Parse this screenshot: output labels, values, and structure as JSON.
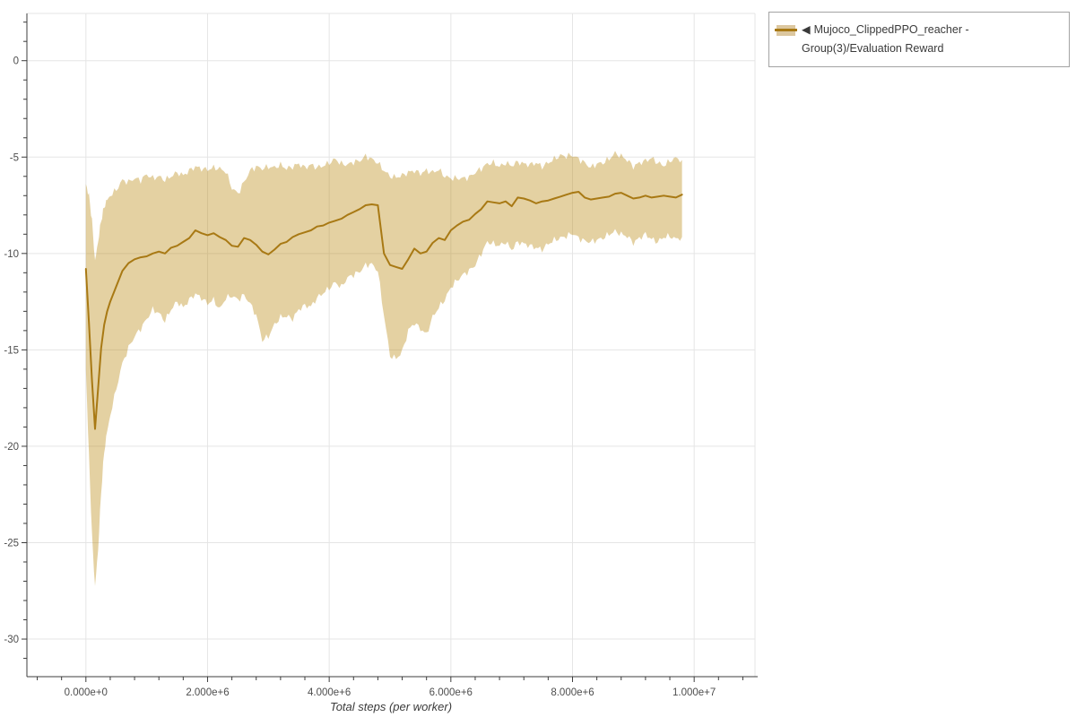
{
  "legend": {
    "marker": "◀",
    "label": "Mujoco_ClippedPPO_reacher - Group(3)/Evaluation Reward"
  },
  "styles": {
    "line_color": "#a87914",
    "band_fill": "#b8860b",
    "band_opacity": 0.38,
    "band_solid_swatch": "#dcc79f",
    "grid_color": "#e5e5e5",
    "axis_line_color": "#3c3c3c",
    "tick_label_color": "#4d4d4d",
    "axis_title_color": "#3b3b3b",
    "legend_text_color": "#3a3a3a",
    "legend_border_color": "#a3a3a3",
    "background": "#ffffff"
  },
  "chart_data": {
    "type": "line",
    "title": "",
    "xlabel": "Total steps (per worker)",
    "ylabel": "",
    "legend_position": "top-right-outside",
    "grid": true,
    "x_range": [
      -970000,
      11000000
    ],
    "y_range": [
      -31.95,
      2.45
    ],
    "x_minor_step": 400000,
    "y_minor_step": 1,
    "x_ticks": [
      {
        "value": 0,
        "label": "0.000e+0"
      },
      {
        "value": 2000000,
        "label": "2.000e+6"
      },
      {
        "value": 4000000,
        "label": "4.000e+6"
      },
      {
        "value": 6000000,
        "label": "6.000e+6"
      },
      {
        "value": 8000000,
        "label": "8.000e+6"
      },
      {
        "value": 10000000,
        "label": "1.000e+7"
      }
    ],
    "y_ticks": [
      {
        "value": 0,
        "label": "0"
      },
      {
        "value": -5,
        "label": "-5"
      },
      {
        "value": -10,
        "label": "-10"
      },
      {
        "value": -15,
        "label": "-15"
      },
      {
        "value": -20,
        "label": "-20"
      },
      {
        "value": -25,
        "label": "-25"
      },
      {
        "value": -30,
        "label": "-30"
      }
    ],
    "series": [
      {
        "name": "Mujoco_ClippedPPO_reacher - Group(3)/Evaluation Reward",
        "x_unit_multiplier": 1000000,
        "columns": [
          "x_steps_e6",
          "mean_reward",
          "band_upper",
          "band_lower"
        ],
        "points": [
          [
            0.0,
            -10.8,
            -6.4,
            -16.0
          ],
          [
            0.05,
            -13.6,
            -7.0,
            -20.5
          ],
          [
            0.1,
            -16.6,
            -8.3,
            -24.6
          ],
          [
            0.15,
            -19.1,
            -10.4,
            -27.3
          ],
          [
            0.2,
            -17.0,
            -9.4,
            -25.4
          ],
          [
            0.25,
            -14.9,
            -8.3,
            -22.4
          ],
          [
            0.3,
            -13.7,
            -7.6,
            -20.3
          ],
          [
            0.35,
            -13.0,
            -7.2,
            -19.2
          ],
          [
            0.4,
            -12.5,
            -7.0,
            -18.4
          ],
          [
            0.5,
            -11.7,
            -6.7,
            -17.0
          ],
          [
            0.6,
            -10.9,
            -6.2,
            -15.7
          ],
          [
            0.7,
            -10.5,
            -6.3,
            -14.9
          ],
          [
            0.8,
            -10.3,
            -6.1,
            -14.3
          ],
          [
            0.9,
            -10.2,
            -6.2,
            -13.9
          ],
          [
            1.0,
            -10.15,
            -5.9,
            -13.4
          ],
          [
            1.1,
            -10.0,
            -6.1,
            -12.9
          ],
          [
            1.2,
            -9.9,
            -6.0,
            -13.1
          ],
          [
            1.3,
            -10.0,
            -6.2,
            -13.5
          ],
          [
            1.4,
            -9.7,
            -6.0,
            -12.9
          ],
          [
            1.5,
            -9.6,
            -5.8,
            -12.5
          ],
          [
            1.6,
            -9.4,
            -5.95,
            -12.8
          ],
          [
            1.7,
            -9.2,
            -5.7,
            -12.4
          ],
          [
            1.8,
            -8.8,
            -5.5,
            -12.1
          ],
          [
            1.9,
            -8.95,
            -5.6,
            -12.3
          ],
          [
            2.0,
            -9.05,
            -5.65,
            -12.6
          ],
          [
            2.1,
            -8.95,
            -5.55,
            -12.4
          ],
          [
            2.2,
            -9.15,
            -5.6,
            -12.9
          ],
          [
            2.3,
            -9.3,
            -5.75,
            -12.3
          ],
          [
            2.4,
            -9.6,
            -6.6,
            -12.2
          ],
          [
            2.5,
            -9.65,
            -6.9,
            -12.4
          ],
          [
            2.6,
            -9.2,
            -6.3,
            -12.15
          ],
          [
            2.7,
            -9.3,
            -5.7,
            -12.6
          ],
          [
            2.8,
            -9.55,
            -5.5,
            -13.2
          ],
          [
            2.9,
            -9.9,
            -5.6,
            -14.5
          ],
          [
            3.0,
            -10.05,
            -5.5,
            -14.3
          ],
          [
            3.1,
            -9.8,
            -5.55,
            -13.7
          ],
          [
            3.2,
            -9.5,
            -5.4,
            -13.3
          ],
          [
            3.3,
            -9.4,
            -5.6,
            -13.25
          ],
          [
            3.4,
            -9.15,
            -5.5,
            -13.4
          ],
          [
            3.5,
            -9.0,
            -5.35,
            -12.9
          ],
          [
            3.6,
            -8.9,
            -5.55,
            -12.7
          ],
          [
            3.7,
            -8.8,
            -5.4,
            -12.75
          ],
          [
            3.8,
            -8.6,
            -5.55,
            -12.3
          ],
          [
            3.9,
            -8.55,
            -5.45,
            -12.05
          ],
          [
            4.0,
            -8.4,
            -5.3,
            -11.8
          ],
          [
            4.1,
            -8.3,
            -5.1,
            -11.5
          ],
          [
            4.2,
            -8.2,
            -5.35,
            -11.75
          ],
          [
            4.3,
            -8.0,
            -5.4,
            -11.25
          ],
          [
            4.4,
            -7.85,
            -5.25,
            -11.1
          ],
          [
            4.5,
            -7.7,
            -5.2,
            -10.95
          ],
          [
            4.6,
            -7.5,
            -4.95,
            -10.6
          ],
          [
            4.7,
            -7.45,
            -5.1,
            -10.55
          ],
          [
            4.8,
            -7.5,
            -5.3,
            -10.9
          ],
          [
            4.9,
            -10.0,
            -5.7,
            -13.2
          ],
          [
            5.0,
            -10.6,
            -6.0,
            -15.3
          ],
          [
            5.1,
            -10.7,
            -6.05,
            -15.45
          ],
          [
            5.2,
            -10.8,
            -5.95,
            -15.1
          ],
          [
            5.3,
            -10.3,
            -5.8,
            -14.0
          ],
          [
            5.4,
            -9.75,
            -5.7,
            -13.6
          ],
          [
            5.5,
            -10.0,
            -5.85,
            -13.9
          ],
          [
            5.6,
            -9.9,
            -5.7,
            -14.2
          ],
          [
            5.7,
            -9.45,
            -5.8,
            -13.3
          ],
          [
            5.8,
            -9.2,
            -5.65,
            -12.8
          ],
          [
            5.9,
            -9.3,
            -6.0,
            -12.4
          ],
          [
            6.0,
            -8.8,
            -6.1,
            -11.75
          ],
          [
            6.1,
            -8.55,
            -6.1,
            -11.4
          ],
          [
            6.2,
            -8.35,
            -6.1,
            -11.1
          ],
          [
            6.3,
            -8.25,
            -6.05,
            -10.9
          ],
          [
            6.4,
            -7.95,
            -5.8,
            -10.6
          ],
          [
            6.5,
            -7.7,
            -5.6,
            -10.0
          ],
          [
            6.6,
            -7.3,
            -5.35,
            -9.4
          ],
          [
            6.7,
            -7.35,
            -5.3,
            -9.5
          ],
          [
            6.8,
            -7.4,
            -5.5,
            -9.6
          ],
          [
            6.9,
            -7.3,
            -5.3,
            -9.4
          ],
          [
            7.0,
            -7.55,
            -5.45,
            -9.8
          ],
          [
            7.1,
            -7.1,
            -5.25,
            -9.4
          ],
          [
            7.2,
            -7.15,
            -5.35,
            -9.5
          ],
          [
            7.3,
            -7.25,
            -5.4,
            -9.6
          ],
          [
            7.4,
            -7.4,
            -5.3,
            -9.7
          ],
          [
            7.5,
            -7.3,
            -5.5,
            -9.8
          ],
          [
            7.6,
            -7.25,
            -5.3,
            -9.5
          ],
          [
            7.7,
            -7.15,
            -5.1,
            -9.3
          ],
          [
            7.8,
            -7.05,
            -4.92,
            -9.2
          ],
          [
            7.9,
            -6.95,
            -4.95,
            -9.1
          ],
          [
            8.0,
            -6.85,
            -4.9,
            -8.95
          ],
          [
            8.1,
            -6.8,
            -5.1,
            -9.2
          ],
          [
            8.2,
            -7.1,
            -5.3,
            -9.35
          ],
          [
            8.3,
            -7.2,
            -5.55,
            -9.4
          ],
          [
            8.4,
            -7.15,
            -5.35,
            -9.3
          ],
          [
            8.5,
            -7.1,
            -5.3,
            -9.2
          ],
          [
            8.6,
            -7.05,
            -5.1,
            -9.0
          ],
          [
            8.7,
            -6.9,
            -4.8,
            -8.85
          ],
          [
            8.8,
            -6.85,
            -4.95,
            -9.0
          ],
          [
            8.9,
            -7.0,
            -5.15,
            -9.1
          ],
          [
            9.0,
            -7.15,
            -5.5,
            -9.45
          ],
          [
            9.1,
            -7.1,
            -5.3,
            -9.2
          ],
          [
            9.2,
            -7.0,
            -5.2,
            -9.0
          ],
          [
            9.3,
            -7.1,
            -5.05,
            -9.25
          ],
          [
            9.4,
            -7.05,
            -5.3,
            -9.4
          ],
          [
            9.5,
            -7.0,
            -5.45,
            -9.15
          ],
          [
            9.6,
            -7.05,
            -5.2,
            -9.1
          ],
          [
            9.7,
            -7.1,
            -5.05,
            -9.25
          ],
          [
            9.8,
            -6.95,
            -5.15,
            -9.15
          ]
        ]
      }
    ]
  }
}
